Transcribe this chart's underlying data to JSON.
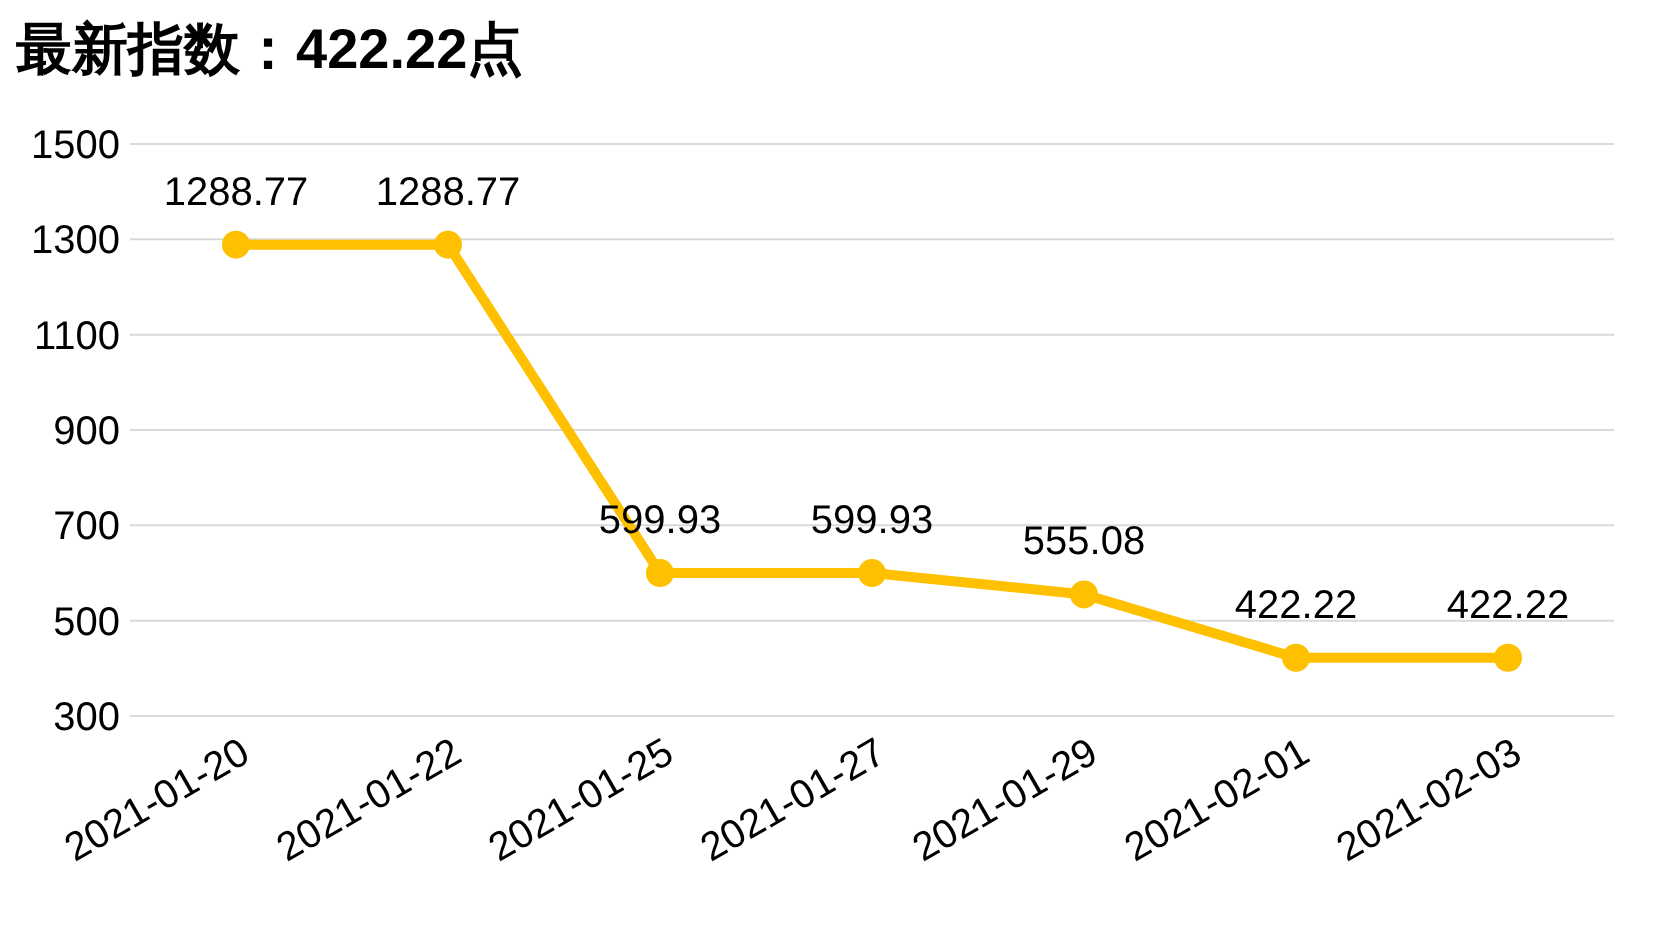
{
  "chart_data": {
    "type": "line",
    "title": "最新指数：422.22点",
    "categories": [
      "2021-01-20",
      "2021-01-22",
      "2021-01-25",
      "2021-01-27",
      "2021-01-29",
      "2021-02-01",
      "2021-02-03"
    ],
    "values": [
      1288.77,
      1288.77,
      599.93,
      599.93,
      555.08,
      422.22,
      422.22
    ],
    "color": "#ffc000",
    "ylim": [
      300,
      1500
    ],
    "yticks": [
      300,
      500,
      700,
      900,
      1100,
      1300,
      1500
    ],
    "grid": "y",
    "marker": "circle",
    "line_style": "solid",
    "data_labels": true
  }
}
